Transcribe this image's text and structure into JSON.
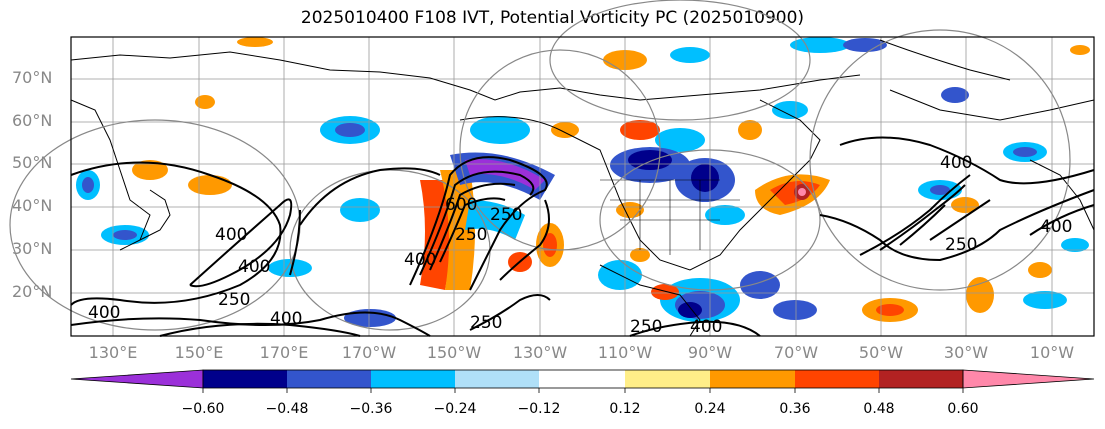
{
  "title": "2025010400 F108 IVT, Potential Vorticity PC (2025010900)",
  "lat_labels": [
    "70°N",
    "60°N",
    "50°N",
    "40°N",
    "30°N",
    "20°N"
  ],
  "lon_labels": [
    "130°E",
    "150°E",
    "170°E",
    "170°W",
    "150°W",
    "130°W",
    "110°W",
    "90°W",
    "70°W",
    "50°W",
    "30°W",
    "10°W"
  ],
  "ivt_contour_labels": [
    "400",
    "400",
    "250",
    "400",
    "400",
    "250",
    "600",
    "250",
    "400",
    "250",
    "250",
    "400",
    "400",
    "250",
    "400"
  ],
  "colorbar": {
    "tick_labels": [
      "−0.60",
      "−0.48",
      "−0.36",
      "−0.24",
      "−0.12",
      "0.12",
      "0.24",
      "0.36",
      "0.48",
      "0.60"
    ],
    "colors": [
      "#9b30d9",
      "#00008b",
      "#3355cc",
      "#00bfff",
      "#b0e0f8",
      "#ffffff",
      "#ffee88",
      "#ff9900",
      "#ff4400",
      "#b22222",
      "#ff88aa",
      "#ff88aa"
    ]
  }
}
